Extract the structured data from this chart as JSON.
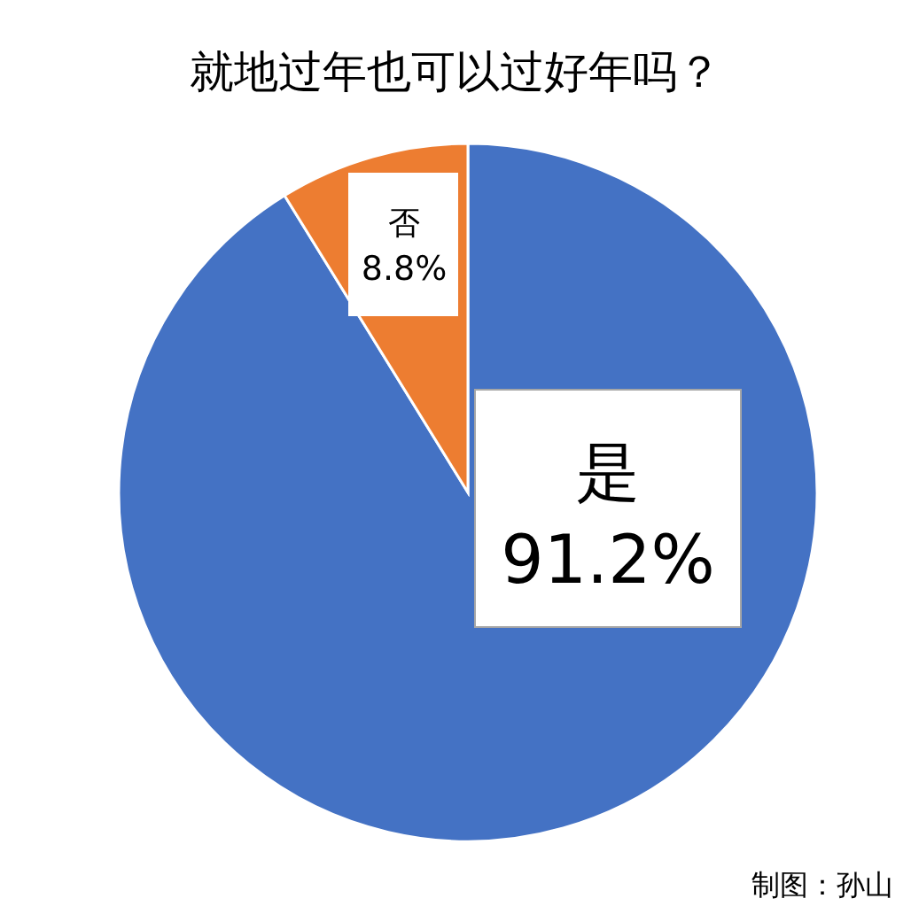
{
  "chart_data": {
    "type": "pie",
    "title": "就地过年也可以过好年吗？",
    "categories": [
      "是",
      "否"
    ],
    "values": [
      91.2,
      8.8
    ],
    "colors": [
      "#4472c4",
      "#ed7d31"
    ],
    "value_labels": [
      "91.2%",
      "8.8%"
    ],
    "annotations": [
      "制图：孙山"
    ]
  }
}
